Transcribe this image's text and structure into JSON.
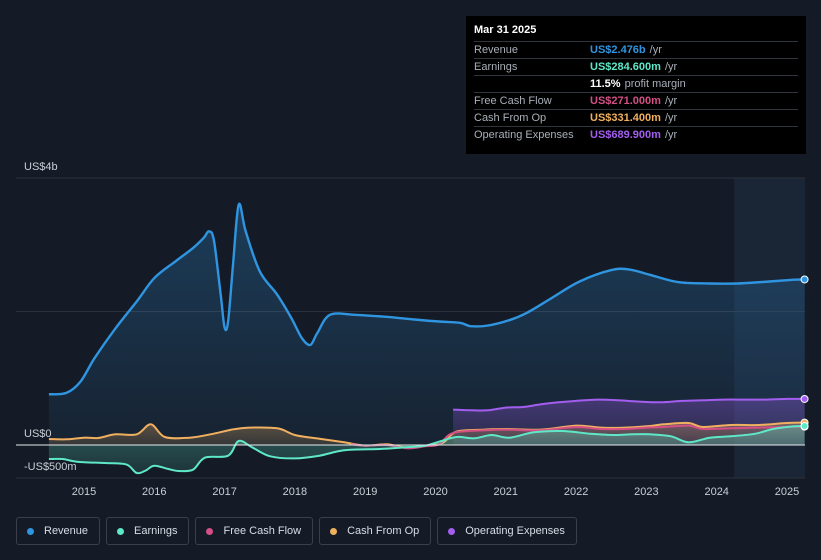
{
  "tooltip": {
    "date": "Mar 31 2025",
    "rows": [
      {
        "label": "Revenue",
        "value": "US$2.476b",
        "unit": "/yr",
        "color": "#2f95e0"
      },
      {
        "label": "Earnings",
        "value": "US$284.600m",
        "unit": "/yr",
        "color": "#5ee8c8"
      },
      {
        "label": "",
        "value": "11.5%",
        "unit": "profit margin",
        "color": "#ffffff"
      },
      {
        "label": "Free Cash Flow",
        "value": "US$271.000m",
        "unit": "/yr",
        "color": "#d44f85"
      },
      {
        "label": "Cash From Op",
        "value": "US$331.400m",
        "unit": "/yr",
        "color": "#f0b060"
      },
      {
        "label": "Operating Expenses",
        "value": "US$689.900m",
        "unit": "/yr",
        "color": "#a35ef0"
      }
    ]
  },
  "legend": [
    {
      "label": "Revenue",
      "color": "#2f95e0"
    },
    {
      "label": "Earnings",
      "color": "#5ee8c8"
    },
    {
      "label": "Free Cash Flow",
      "color": "#d44f85"
    },
    {
      "label": "Cash From Op",
      "color": "#f0b060"
    },
    {
      "label": "Operating Expenses",
      "color": "#a35ef0"
    }
  ],
  "chart_data": {
    "type": "line",
    "title": "",
    "units": "US$ millions",
    "y_axis_labels": [
      {
        "label": "US$4b",
        "value": 4000
      },
      {
        "label": "US$0",
        "value": 0
      },
      {
        "label": "-US$500m",
        "value": -500
      }
    ],
    "ylim": [
      -500,
      4000
    ],
    "xlim": [
      2014.5,
      2025.25
    ],
    "x_ticks": [
      {
        "label": "2015",
        "value": 2015
      },
      {
        "label": "2016",
        "value": 2016
      },
      {
        "label": "2017",
        "value": 2017
      },
      {
        "label": "2018",
        "value": 2018
      },
      {
        "label": "2019",
        "value": 2019
      },
      {
        "label": "2020",
        "value": 2020
      },
      {
        "label": "2021",
        "value": 2021
      },
      {
        "label": "2022",
        "value": 2022
      },
      {
        "label": "2023",
        "value": 2023
      },
      {
        "label": "2024",
        "value": 2024
      },
      {
        "label": "2025",
        "value": 2025
      }
    ],
    "forecast_start": 2024.25,
    "series": [
      {
        "name": "Revenue",
        "color": "#2f95e0",
        "fill": true,
        "points": [
          [
            2014.5,
            760
          ],
          [
            2014.75,
            780
          ],
          [
            2014.95,
            950
          ],
          [
            2015.15,
            1300
          ],
          [
            2015.45,
            1750
          ],
          [
            2015.75,
            2150
          ],
          [
            2016.0,
            2500
          ],
          [
            2016.3,
            2750
          ],
          [
            2016.55,
            2950
          ],
          [
            2016.7,
            3100
          ],
          [
            2016.78,
            3200
          ],
          [
            2016.85,
            3050
          ],
          [
            2016.95,
            2200
          ],
          [
            2017.0,
            1760
          ],
          [
            2017.05,
            1850
          ],
          [
            2017.12,
            2700
          ],
          [
            2017.2,
            3600
          ],
          [
            2017.3,
            3200
          ],
          [
            2017.5,
            2600
          ],
          [
            2017.75,
            2250
          ],
          [
            2017.95,
            1900
          ],
          [
            2018.1,
            1600
          ],
          [
            2018.22,
            1500
          ],
          [
            2018.32,
            1680
          ],
          [
            2018.5,
            1950
          ],
          [
            2018.85,
            1950
          ],
          [
            2019.3,
            1920
          ],
          [
            2019.7,
            1880
          ],
          [
            2020.05,
            1850
          ],
          [
            2020.35,
            1830
          ],
          [
            2020.5,
            1780
          ],
          [
            2020.75,
            1790
          ],
          [
            2021.05,
            1870
          ],
          [
            2021.3,
            1980
          ],
          [
            2021.65,
            2200
          ],
          [
            2022.05,
            2450
          ],
          [
            2022.5,
            2620
          ],
          [
            2022.75,
            2630
          ],
          [
            2023.05,
            2550
          ],
          [
            2023.45,
            2440
          ],
          [
            2023.9,
            2420
          ],
          [
            2024.3,
            2420
          ],
          [
            2024.75,
            2450
          ],
          [
            2025.1,
            2476
          ],
          [
            2025.25,
            2480
          ]
        ]
      },
      {
        "name": "Operating Expenses",
        "color": "#a35ef0",
        "fill": true,
        "points": [
          [
            2020.25,
            530
          ],
          [
            2020.5,
            520
          ],
          [
            2020.75,
            520
          ],
          [
            2021.0,
            560
          ],
          [
            2021.25,
            570
          ],
          [
            2021.5,
            610
          ],
          [
            2021.75,
            640
          ],
          [
            2022.0,
            660
          ],
          [
            2022.3,
            680
          ],
          [
            2022.6,
            670
          ],
          [
            2022.9,
            650
          ],
          [
            2023.2,
            640
          ],
          [
            2023.5,
            660
          ],
          [
            2023.8,
            670
          ],
          [
            2024.1,
            680
          ],
          [
            2024.4,
            680
          ],
          [
            2024.7,
            680
          ],
          [
            2025.0,
            690
          ],
          [
            2025.25,
            690
          ]
        ]
      },
      {
        "name": "Cash From Op",
        "color": "#f0b060",
        "fill": true,
        "points": [
          [
            2014.5,
            90
          ],
          [
            2014.75,
            85
          ],
          [
            2015.0,
            110
          ],
          [
            2015.2,
            105
          ],
          [
            2015.45,
            160
          ],
          [
            2015.75,
            160
          ],
          [
            2015.95,
            310
          ],
          [
            2016.15,
            120
          ],
          [
            2016.5,
            110
          ],
          [
            2016.8,
            160
          ],
          [
            2017.1,
            230
          ],
          [
            2017.35,
            260
          ],
          [
            2017.75,
            250
          ],
          [
            2018.0,
            150
          ],
          [
            2018.3,
            100
          ],
          [
            2018.7,
            40
          ],
          [
            2019.0,
            -10
          ],
          [
            2019.3,
            10
          ],
          [
            2019.6,
            -40
          ],
          [
            2019.85,
            -10
          ],
          [
            2020.1,
            30
          ],
          [
            2020.3,
            200
          ],
          [
            2020.7,
            230
          ],
          [
            2021.0,
            240
          ],
          [
            2021.5,
            230
          ],
          [
            2022.0,
            290
          ],
          [
            2022.35,
            260
          ],
          [
            2022.7,
            260
          ],
          [
            2023.0,
            280
          ],
          [
            2023.25,
            310
          ],
          [
            2023.6,
            330
          ],
          [
            2023.8,
            270
          ],
          [
            2024.2,
            300
          ],
          [
            2024.6,
            300
          ],
          [
            2025.0,
            330
          ],
          [
            2025.25,
            335
          ]
        ]
      },
      {
        "name": "Free Cash Flow",
        "color": "#d44f85",
        "fill": false,
        "points": [
          [
            2018.8,
            10
          ],
          [
            2019.0,
            -10
          ],
          [
            2019.3,
            0
          ],
          [
            2019.6,
            -50
          ],
          [
            2019.85,
            -20
          ],
          [
            2020.05,
            10
          ],
          [
            2020.25,
            180
          ],
          [
            2020.7,
            220
          ],
          [
            2021.0,
            230
          ],
          [
            2021.5,
            220
          ],
          [
            2022.0,
            270
          ],
          [
            2022.35,
            240
          ],
          [
            2022.7,
            240
          ],
          [
            2023.0,
            260
          ],
          [
            2023.25,
            270
          ],
          [
            2023.6,
            290
          ],
          [
            2023.8,
            240
          ],
          [
            2024.2,
            250
          ],
          [
            2024.6,
            260
          ],
          [
            2025.0,
            271
          ],
          [
            2025.25,
            275
          ]
        ]
      },
      {
        "name": "Earnings",
        "color": "#5ee8c8",
        "fill": true,
        "points": [
          [
            2014.5,
            -210
          ],
          [
            2014.7,
            -210
          ],
          [
            2014.9,
            -250
          ],
          [
            2015.3,
            -270
          ],
          [
            2015.6,
            -290
          ],
          [
            2015.75,
            -420
          ],
          [
            2015.88,
            -380
          ],
          [
            2016.0,
            -310
          ],
          [
            2016.2,
            -360
          ],
          [
            2016.35,
            -390
          ],
          [
            2016.55,
            -370
          ],
          [
            2016.72,
            -190
          ],
          [
            2017.05,
            -160
          ],
          [
            2017.2,
            60
          ],
          [
            2017.4,
            -40
          ],
          [
            2017.65,
            -170
          ],
          [
            2018.0,
            -200
          ],
          [
            2018.35,
            -160
          ],
          [
            2018.7,
            -80
          ],
          [
            2019.2,
            -60
          ],
          [
            2019.5,
            -40
          ],
          [
            2019.85,
            -10
          ],
          [
            2020.05,
            50
          ],
          [
            2020.3,
            120
          ],
          [
            2020.55,
            100
          ],
          [
            2020.8,
            150
          ],
          [
            2021.05,
            110
          ],
          [
            2021.4,
            190
          ],
          [
            2021.8,
            210
          ],
          [
            2022.2,
            170
          ],
          [
            2022.55,
            150
          ],
          [
            2022.8,
            160
          ],
          [
            2023.05,
            160
          ],
          [
            2023.35,
            130
          ],
          [
            2023.6,
            40
          ],
          [
            2023.9,
            110
          ],
          [
            2024.2,
            130
          ],
          [
            2024.55,
            170
          ],
          [
            2024.8,
            240
          ],
          [
            2025.1,
            280
          ],
          [
            2025.25,
            285
          ]
        ]
      }
    ]
  }
}
